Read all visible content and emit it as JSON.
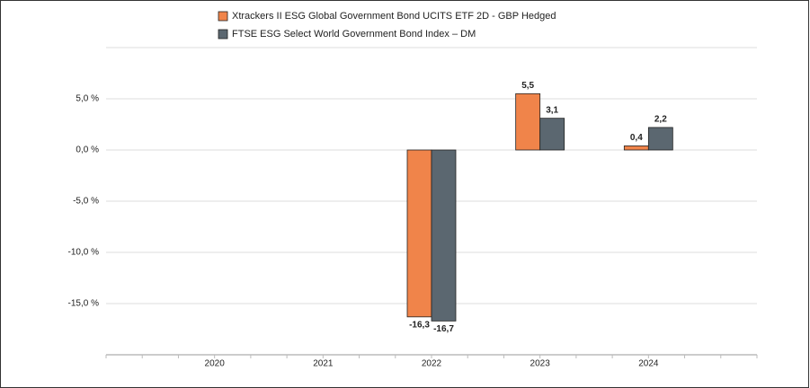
{
  "chart_data": {
    "type": "bar",
    "categories": [
      "2020",
      "2021",
      "2022",
      "2023",
      "2024"
    ],
    "series": [
      {
        "name": "Xtrackers II ESG Global Government Bond UCITS ETF 2D - GBP Hedged",
        "color": "#f0844a",
        "values": [
          null,
          null,
          -16.3,
          5.5,
          0.4
        ],
        "value_labels": [
          null,
          null,
          "-16,3",
          "5,5",
          "0,4"
        ]
      },
      {
        "name": "FTSE ESG Select World Government Bond Index – DM",
        "color": "#5b6770",
        "values": [
          null,
          null,
          -16.7,
          3.1,
          2.2
        ],
        "value_labels": [
          null,
          null,
          "-16,7",
          "3,1",
          "2,2"
        ]
      }
    ],
    "ylim": [
      -20,
      10
    ],
    "yticks": [
      {
        "value": 5,
        "label": "5,0 %"
      },
      {
        "value": 0,
        "label": "0,0 %"
      },
      {
        "value": -5,
        "label": "-5,0 %"
      },
      {
        "value": -10,
        "label": "-10,0 %"
      },
      {
        "value": -15,
        "label": "-15,0 %"
      }
    ],
    "grid": true
  }
}
